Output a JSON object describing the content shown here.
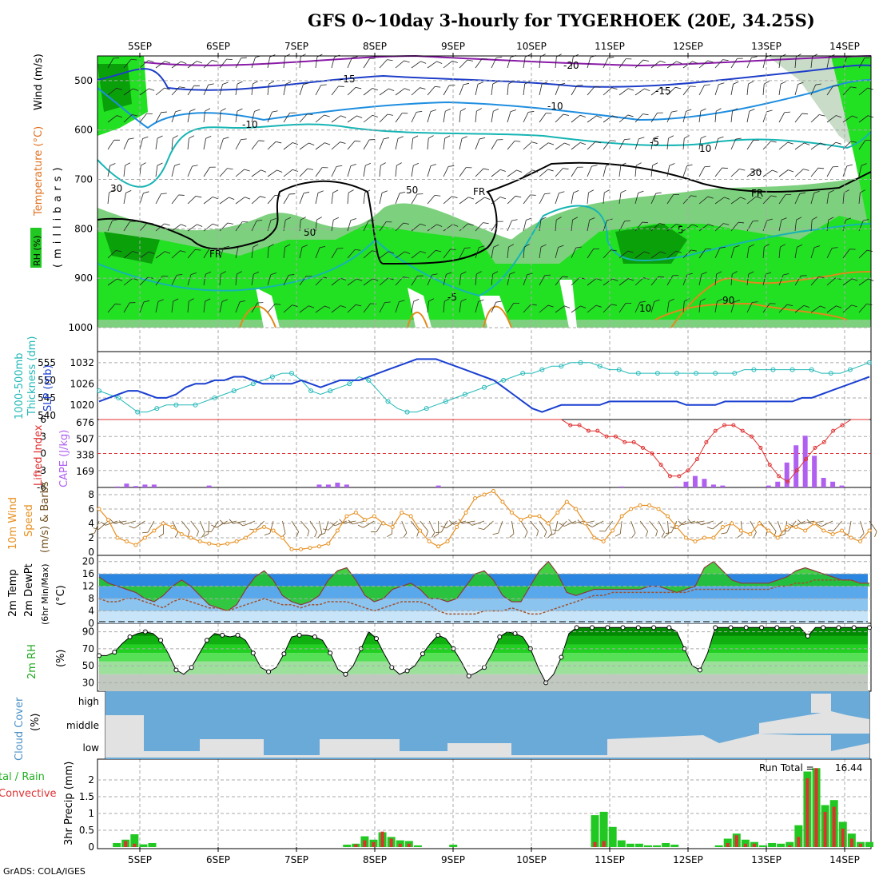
{
  "title": "GFS 0~10day 3-hourly for TYGERHOEK (20E, 34.25S)",
  "footer": "GrADS: COLA/IGES",
  "dates": [
    "5SEP",
    "6SEP",
    "7SEP",
    "8SEP",
    "9SEP",
    "10SEP",
    "11SEP",
    "12SEP",
    "13SEP",
    "14SEP"
  ],
  "colors": {
    "grid": "#aaaaaa",
    "rh_green_1": "#c8dcc8",
    "rh_green_2": "#7dd07d",
    "rh_green_3": "#22e022",
    "rh_green_4": "#0aa00a",
    "temp_purple": "#8a1aa8",
    "temp_blue": "#1e3ec8",
    "temp_lightblue": "#1e8ee0",
    "temp_cyan": "#16b4b4",
    "temp_orange": "#e08a1e",
    "thickness": "#22b8b8",
    "slp": "#1a3fd0",
    "lifted": "#e03030",
    "cape": "#b060f0",
    "wind10m": "#e89020",
    "barb": "#705020",
    "t2m_fill": "#22c822",
    "dewpt": "#a0522d",
    "cloud_blue": "#6aaad8",
    "cloud_gray": "#e2e2e2",
    "precip_total": "#22c822",
    "precip_conv": "#e03030"
  },
  "panels": {
    "upper": {
      "ylabel_temp": "Temperature (°C)",
      "ylabel_wind": "Wind (m/s)",
      "ylabel_units": "(millibars)",
      "ylabel_rh": "RH (%)",
      "yticks": [
        "500",
        "600",
        "700",
        "800",
        "900",
        "1000"
      ],
      "contour_labels": [
        "-20",
        "-15",
        "-15",
        "-10",
        "-10",
        "-5",
        "-5",
        "5",
        "10",
        "FR",
        "FR",
        "FR",
        "10",
        "30",
        "30",
        "50",
        "50",
        "90"
      ]
    },
    "slp": {
      "ylabel_left": "1000-500mb",
      "ylabel_left2": "Thickness (dm)",
      "ylabel_right": "SLP (mb)",
      "yticks_left": [
        "540",
        "545",
        "550",
        "555"
      ],
      "yticks_right": [
        "1020",
        "1026",
        "1032"
      ]
    },
    "cape": {
      "ylabel_left": "Lifted Index",
      "ylabel_right": "CAPE (J/kg)",
      "yticks_left": [
        "6",
        "3",
        "0",
        "-3",
        "-6"
      ],
      "yticks_right": [
        "169",
        "338",
        "507",
        "676"
      ]
    },
    "wind10m": {
      "ylabel_1": "10m Wind",
      "ylabel_2": "Speed",
      "ylabel_3": "(m/s) & Barbs",
      "yticks": [
        "0",
        "2",
        "4",
        "6",
        "8"
      ]
    },
    "temp2m": {
      "ylabel_1": "2m Temp",
      "ylabel_2": "2m DewPt",
      "ylabel_3": "(6hr Min/Max)",
      "ylabel_units": "(°C)",
      "yticks": [
        "0",
        "4",
        "8",
        "12",
        "16",
        "20"
      ]
    },
    "rh2m": {
      "ylabel": "2m RH",
      "ylabel_units": "(%)",
      "yticks": [
        "30",
        "50",
        "70",
        "90"
      ]
    },
    "cloud": {
      "ylabel": "Cloud Cover",
      "ylabel_units": "(%)",
      "levels": [
        "high",
        "middle",
        "low"
      ]
    },
    "precip": {
      "ylabel_a": "tal / Rain",
      "ylabel_b": "Convective",
      "ylabel_right": "3hr Precip (mm)",
      "yticks": [
        "0",
        "0.5",
        "1",
        "1.5",
        "2"
      ],
      "run_total_label": "Run Total =",
      "run_total_value": "16.44"
    }
  },
  "chart_data": [
    {
      "type": "line",
      "title": "SLP (mb)",
      "series": [
        {
          "name": "SLP (mb)",
          "values": [
            1021,
            1022,
            1023,
            1024,
            1024,
            1023,
            1022,
            1022,
            1023,
            1025,
            1026,
            1026,
            1027,
            1027,
            1028,
            1028,
            1027,
            1026,
            1026,
            1026,
            1026,
            1027,
            1026,
            1025,
            1026,
            1027,
            1027,
            1027,
            1028,
            1029,
            1030,
            1031,
            1032,
            1033,
            1033,
            1033,
            1032,
            1031,
            1030,
            1029,
            1028,
            1027,
            1025,
            1023,
            1021,
            1019,
            1018,
            1019,
            1020,
            1020,
            1020,
            1020,
            1020,
            1021,
            1021,
            1021,
            1021,
            1021,
            1021,
            1021,
            1021,
            1020,
            1020,
            1020,
            1020,
            1021,
            1021,
            1021,
            1021,
            1021,
            1021,
            1021,
            1021,
            1022,
            1022,
            1023,
            1024,
            1025,
            1026,
            1027,
            1028
          ]
        }
      ],
      "ylim": [
        1017,
        1034
      ]
    },
    {
      "type": "line",
      "title": "1000-500mb Thickness (dm)",
      "series": [
        {
          "name": "Thickness (dm)",
          "values": [
            547,
            546,
            545,
            543,
            541,
            541,
            542,
            543,
            543,
            543,
            543,
            544,
            545,
            546,
            547,
            548,
            549,
            550,
            551,
            552,
            552,
            550,
            547,
            546,
            547,
            548,
            549,
            551,
            550,
            547,
            544,
            542,
            541,
            541,
            542,
            543,
            544,
            545,
            546,
            547,
            548,
            549,
            550,
            551,
            552,
            552,
            553,
            554,
            554,
            555,
            555,
            555,
            554,
            553,
            553,
            552,
            552,
            552,
            552,
            552,
            552,
            552,
            552,
            552,
            552,
            552,
            552,
            553,
            553,
            553,
            553,
            553,
            553,
            553,
            553,
            552,
            552,
            552,
            553,
            554,
            555
          ]
        }
      ],
      "ylim": [
        540,
        557
      ]
    },
    {
      "type": "line",
      "title": "Lifted Index",
      "series": [
        {
          "name": "Lifted Index",
          "values": [
            6,
            6,
            6,
            6,
            6,
            6,
            6,
            6,
            6,
            6,
            6,
            6,
            6,
            6,
            6,
            6,
            6,
            6,
            6,
            6,
            6,
            6,
            6,
            6,
            6,
            6,
            6,
            6,
            6,
            6,
            6,
            6,
            6,
            6,
            6,
            6,
            6,
            6,
            6,
            6,
            6,
            6,
            6,
            6,
            6,
            6,
            6,
            6,
            6,
            6,
            6,
            6,
            5,
            5,
            4,
            4,
            3,
            3,
            2,
            2,
            1,
            0,
            -2,
            -4,
            -4,
            -3,
            -1,
            2,
            4,
            5,
            5,
            4,
            3,
            1,
            -2,
            -4,
            -5,
            -3,
            -1,
            1,
            2,
            4,
            5,
            6,
            6,
            6
          ]
        }
      ],
      "ylim": [
        6,
        -6
      ]
    },
    {
      "type": "bar",
      "title": "CAPE (J/kg)",
      "series": [
        {
          "name": "CAPE (J/kg)",
          "values": [
            0,
            0,
            10,
            40,
            15,
            30,
            30,
            0,
            0,
            0,
            0,
            0,
            20,
            0,
            0,
            0,
            0,
            0,
            0,
            0,
            0,
            0,
            0,
            0,
            30,
            30,
            50,
            30,
            0,
            0,
            0,
            0,
            0,
            0,
            0,
            0,
            0,
            20,
            0,
            0,
            0,
            0,
            0,
            0,
            0,
            0,
            0,
            0,
            0,
            0,
            0,
            0,
            0,
            0,
            0,
            0,
            0,
            10,
            0,
            0,
            0,
            0,
            0,
            10,
            60,
            120,
            90,
            30,
            20,
            0,
            0,
            0,
            0,
            20,
            60,
            260,
            440,
            540,
            330,
            100,
            60,
            20,
            0,
            0,
            0
          ]
        }
      ],
      "ylim": [
        0,
        676
      ]
    },
    {
      "type": "line",
      "title": "10m Wind Speed (m/s)",
      "series": [
        {
          "name": "Speed",
          "values": [
            6.0,
            4.5,
            2.0,
            1.5,
            1.0,
            2.0,
            3.0,
            4.0,
            3.5,
            2.5,
            2.0,
            1.5,
            1.2,
            1.0,
            1.2,
            1.5,
            2.0,
            3.0,
            3.5,
            3.0,
            2.0,
            0.4,
            0.4,
            0.6,
            0.8,
            1.2,
            3.0,
            5.0,
            5.5,
            4.5,
            5.0,
            4.0,
            3.5,
            5.5,
            5.0,
            3.0,
            1.5,
            0.8,
            1.5,
            3.5,
            5.5,
            7.5,
            8.0,
            8.5,
            7.0,
            5.5,
            4.5,
            5.0,
            5.0,
            4.0,
            5.5,
            7.0,
            6.0,
            4.0,
            2.0,
            1.5,
            3.0,
            5.0,
            6.0,
            6.5,
            6.5,
            6.0,
            5.0,
            3.5,
            2.0,
            1.5,
            2.0,
            2.0,
            3.5,
            4.0,
            3.0,
            2.5,
            4.0,
            3.0,
            2.0,
            3.5,
            3.5,
            3.0,
            4.0,
            3.0,
            2.5,
            3.0,
            2.0,
            1.5,
            3.0
          ]
        }
      ],
      "ylim": [
        0,
        9
      ]
    },
    {
      "type": "area",
      "title": "2m Temp (°C)",
      "series": [
        {
          "name": "2m Temp",
          "values": [
            15,
            13,
            12,
            11,
            10,
            8,
            7,
            9,
            12,
            14,
            12,
            9,
            6,
            5,
            4,
            6,
            11,
            15,
            17,
            14,
            9,
            7,
            6,
            7,
            9,
            14,
            17,
            18,
            14,
            9,
            7,
            8,
            11,
            12,
            13,
            11,
            8,
            8,
            7,
            8,
            12,
            16,
            17,
            14,
            9,
            7,
            7,
            12,
            17,
            20,
            16,
            10,
            9,
            10,
            11,
            11,
            11,
            11,
            11,
            11,
            12,
            12,
            11,
            10,
            11,
            12,
            18,
            20,
            17,
            14,
            13,
            13,
            13,
            13,
            14,
            15,
            17,
            18,
            17,
            16,
            15,
            14,
            14,
            13,
            13
          ]
        },
        {
          "name": "2m DewPt",
          "values": [
            8,
            7,
            7,
            8,
            8,
            7,
            6,
            5,
            7,
            8,
            7,
            6,
            5,
            5,
            4,
            5,
            6,
            7,
            8,
            7,
            6,
            6,
            5,
            6,
            6,
            7,
            7,
            7,
            6,
            5,
            4,
            5,
            6,
            7,
            7,
            7,
            6,
            4,
            3,
            3,
            3,
            3,
            4,
            4,
            4,
            5,
            4,
            3,
            3,
            4,
            5,
            6,
            7,
            8,
            9,
            9,
            10,
            10,
            10,
            10,
            10,
            10,
            10,
            10,
            10,
            11,
            11,
            11,
            11,
            11,
            11,
            11,
            11,
            11,
            12,
            12,
            13,
            13,
            14,
            14,
            14,
            14,
            14,
            13,
            13
          ]
        }
      ],
      "ylim": [
        0,
        22
      ]
    },
    {
      "type": "area",
      "title": "2m RH (%)",
      "series": [
        {
          "name": "2m RH",
          "values": [
            62,
            62,
            66,
            76,
            84,
            88,
            90,
            88,
            80,
            64,
            45,
            40,
            48,
            64,
            80,
            88,
            86,
            84,
            86,
            80,
            65,
            48,
            43,
            48,
            64,
            84,
            86,
            86,
            84,
            80,
            65,
            46,
            40,
            50,
            70,
            90,
            82,
            64,
            48,
            40,
            44,
            50,
            64,
            76,
            86,
            82,
            70,
            55,
            38,
            42,
            48,
            64,
            84,
            90,
            88,
            84,
            70,
            48,
            30,
            40,
            60,
            88,
            95,
            95,
            95,
            95,
            95,
            95,
            95,
            95,
            95,
            95,
            95,
            95,
            95,
            90,
            70,
            50,
            45,
            65,
            95,
            95,
            95,
            95,
            95,
            95,
            95,
            95,
            95,
            95,
            95,
            95,
            85,
            95,
            95,
            95,
            95,
            95,
            95,
            95,
            95
          ]
        }
      ],
      "ylim": [
        20,
        100
      ]
    },
    {
      "type": "bar",
      "title": "3hr Precip (mm)",
      "series": [
        {
          "name": "Total",
          "values": [
            0,
            0,
            0.12,
            0.22,
            0.38,
            0.08,
            0.12,
            0,
            0,
            0,
            0,
            0,
            0,
            0,
            0,
            0,
            0,
            0,
            0,
            0,
            0,
            0,
            0,
            0,
            0,
            0,
            0,
            0,
            0.07,
            0.1,
            0.32,
            0.22,
            0.44,
            0.3,
            0.2,
            0.18,
            0.05,
            0,
            0,
            0,
            0.07,
            0,
            0,
            0,
            0,
            0,
            0,
            0,
            0,
            0,
            0,
            0,
            0,
            0,
            0,
            0,
            0.95,
            1.05,
            0.6,
            0.2,
            0.1,
            0.1,
            0.05,
            0.05,
            0.12,
            0.07,
            0,
            0,
            0,
            0,
            0.05,
            0.25,
            0.4,
            0.22,
            0.15,
            0.05,
            0.12,
            0.1,
            0.15,
            0.65,
            2.25,
            2.35,
            1.25,
            1.4,
            0.75,
            0.4,
            0.15,
            0.15
          ]
        },
        {
          "name": "Convective",
          "values": [
            0,
            0,
            0,
            0.18,
            0.1,
            0,
            0,
            0,
            0,
            0,
            0,
            0,
            0,
            0,
            0,
            0,
            0,
            0,
            0,
            0,
            0,
            0,
            0,
            0,
            0,
            0,
            0,
            0,
            0,
            0.08,
            0.2,
            0.15,
            0.46,
            0.25,
            0.1,
            0.1,
            0,
            0,
            0,
            0,
            0,
            0,
            0,
            0,
            0,
            0,
            0,
            0,
            0,
            0,
            0,
            0,
            0,
            0,
            0,
            0,
            0.15,
            0.18,
            0,
            0,
            0,
            0,
            0,
            0,
            0,
            0,
            0,
            0,
            0,
            0,
            0,
            0.12,
            0.35,
            0.1,
            0.1,
            0,
            0,
            0,
            0.05,
            0.3,
            2.05,
            2.35,
            1.05,
            1.2,
            0.55,
            0.25,
            0.1,
            0
          ]
        }
      ],
      "ylim": [
        0,
        2.5
      ]
    }
  ]
}
